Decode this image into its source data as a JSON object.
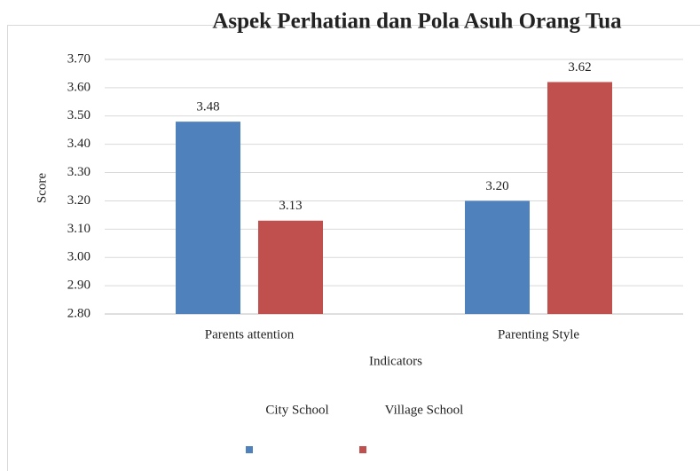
{
  "chart_data": {
    "type": "bar",
    "title": "Aspek Perhatian dan Pola Asuh Orang Tua",
    "x_label": "Indicators",
    "y_label": "Score",
    "categories": [
      "Parents attention",
      "Parenting Style"
    ],
    "series": [
      {
        "name": "City School",
        "color": "#4f81bd",
        "values": [
          3.48,
          3.2
        ],
        "value_labels": [
          "3.48",
          "3.20"
        ]
      },
      {
        "name": "Village School",
        "color": "#c0504d",
        "values": [
          3.13,
          3.62
        ],
        "value_labels": [
          "3.13",
          "3.62"
        ]
      }
    ],
    "ylim": [
      2.8,
      3.7
    ],
    "yticks": [
      {
        "value": 2.8,
        "label": "2.80"
      },
      {
        "value": 2.9,
        "label": "2.90"
      },
      {
        "value": 3.0,
        "label": "3.00"
      },
      {
        "value": 3.1,
        "label": "3.10"
      },
      {
        "value": 3.2,
        "label": "3.20"
      },
      {
        "value": 3.3,
        "label": "3.30"
      },
      {
        "value": 3.4,
        "label": "3.40"
      },
      {
        "value": 3.5,
        "label": "3.50"
      },
      {
        "value": 3.6,
        "label": "3.60"
      },
      {
        "value": 3.7,
        "label": "3.70"
      }
    ],
    "grid": true
  }
}
